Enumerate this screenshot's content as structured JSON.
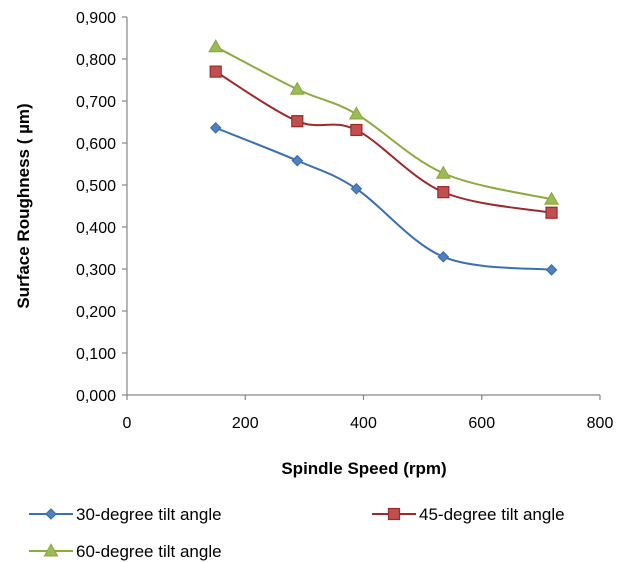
{
  "chart_data": {
    "type": "line",
    "xlabel": "Spindle Speed (rpm)",
    "ylabel": "Surface Roughness ( µm)",
    "xlim": [
      0,
      800
    ],
    "ylim": [
      0,
      0.9
    ],
    "x_ticks": [
      "0",
      "200",
      "400",
      "600",
      "800"
    ],
    "y_ticks": [
      "0,000",
      "0,100",
      "0,200",
      "0,300",
      "0,400",
      "0,500",
      "0,600",
      "0,700",
      "0,800",
      "0,900"
    ],
    "x": [
      150,
      288,
      388,
      535,
      718
    ],
    "grid": false,
    "smooth": true,
    "legend_position": "bottom",
    "series": [
      {
        "name": "30-degree tilt angle",
        "marker": "diamond",
        "color": "#3a6fb5",
        "fill": "#4f81bd",
        "values": [
          0.636,
          0.558,
          0.491,
          0.329,
          0.298
        ]
      },
      {
        "name": "45-degree tilt angle",
        "marker": "square",
        "color": "#a0282b",
        "fill": "#c0504d",
        "values": [
          0.77,
          0.652,
          0.631,
          0.483,
          0.434
        ]
      },
      {
        "name": "60-degree tilt angle",
        "marker": "triangle",
        "color": "#8caa3e",
        "fill": "#9bbb59",
        "values": [
          0.829,
          0.728,
          0.669,
          0.528,
          0.466
        ]
      }
    ]
  }
}
